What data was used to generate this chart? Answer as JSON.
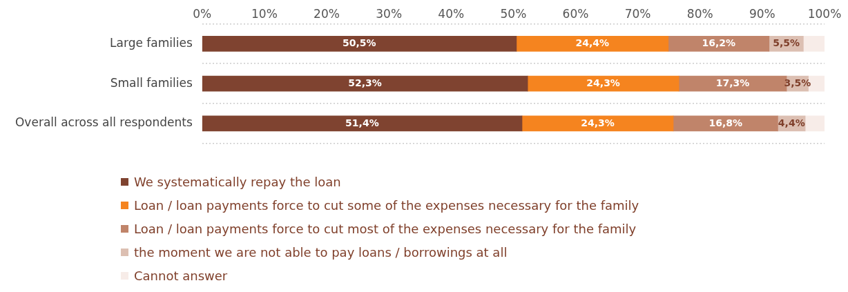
{
  "chart_data": {
    "type": "bar",
    "orientation": "horizontal",
    "stacked": true,
    "categories": [
      "Large families",
      "Small families",
      "Overall across all respondents"
    ],
    "series": [
      {
        "name": "We systematically repay the loan",
        "color": "#7f4330",
        "values": [
          50.5,
          52.3,
          51.4
        ],
        "value_labels": [
          "50,5%",
          "52,3%",
          "51,4%"
        ]
      },
      {
        "name": "Loan / loan payments force to cut some of the expenses necessary for the family",
        "color": "#f5841f",
        "values": [
          24.4,
          24.3,
          24.3
        ],
        "value_labels": [
          "24,4%",
          "24,3%",
          "24,3%"
        ]
      },
      {
        "name": "Loan / loan payments force to cut most of the expenses necessary for the family",
        "color": "#c0846a",
        "values": [
          16.2,
          17.3,
          16.8
        ],
        "value_labels": [
          "16,2%",
          "17,3%",
          "16,8%"
        ]
      },
      {
        "name": "the moment we are not able to pay loans / borrowings at all",
        "color": "#dcbfb2",
        "values": [
          5.5,
          3.5,
          4.4
        ],
        "value_labels": [
          "5,5%",
          "3,5%",
          "4,4%"
        ]
      },
      {
        "name": "Cannot answer",
        "color": "#f7ece8",
        "values": [
          3.4,
          2.6,
          3.1
        ]
      }
    ],
    "xlim": [
      0,
      100
    ],
    "xticks": [
      {
        "value": 0,
        "label": "0%"
      },
      {
        "value": 10,
        "label": "10%"
      },
      {
        "value": 20,
        "label": "20%"
      },
      {
        "value": 30,
        "label": "30%"
      },
      {
        "value": 40,
        "label": "40%"
      },
      {
        "value": 50,
        "label": "50%"
      },
      {
        "value": 60,
        "label": "60%"
      },
      {
        "value": 70,
        "label": "70%"
      },
      {
        "value": 80,
        "label": "80%"
      },
      {
        "value": 90,
        "label": "90%"
      },
      {
        "value": 100,
        "label": "100%"
      }
    ],
    "grid": "y",
    "legend": "bottom"
  }
}
